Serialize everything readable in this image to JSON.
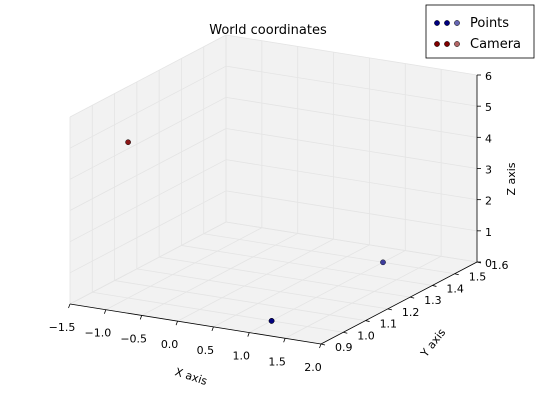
{
  "chart_data": {
    "type": "scatter",
    "projection": "3d",
    "title": "World coordinates",
    "xlabel": "X axis",
    "ylabel": "Y axis",
    "zlabel": "Z axis",
    "xlim": [
      -1.5,
      2.0
    ],
    "ylim": [
      0.9,
      1.6
    ],
    "zlim": [
      0,
      6
    ],
    "xticks": [
      "−1.5",
      "−1.0",
      "−0.5",
      "0.0",
      "0.5",
      "1.0",
      "1.5",
      "2.0"
    ],
    "yticks": [
      "0.9",
      "1.0",
      "1.1",
      "1.2",
      "1.3",
      "1.4",
      "1.5",
      "1.6"
    ],
    "zticks": [
      "0",
      "1",
      "2",
      "3",
      "4",
      "5",
      "6"
    ],
    "grid": true,
    "legend": "top-right",
    "series": [
      {
        "name": "Points",
        "color": "#000080",
        "points": [
          {
            "x": 1.0,
            "y": 1.0,
            "z": 0
          },
          {
            "x": 1.0,
            "y": 1.0,
            "z": 0
          },
          {
            "x": 1.0,
            "y": 1.5,
            "z": 0
          },
          {
            "x": 1.0,
            "y": 1.5,
            "z": 0
          }
        ]
      },
      {
        "name": "Camera",
        "color": "#800000",
        "points": [
          {
            "x": -1.0,
            "y": 1.0,
            "z": 5.0
          }
        ]
      }
    ]
  }
}
